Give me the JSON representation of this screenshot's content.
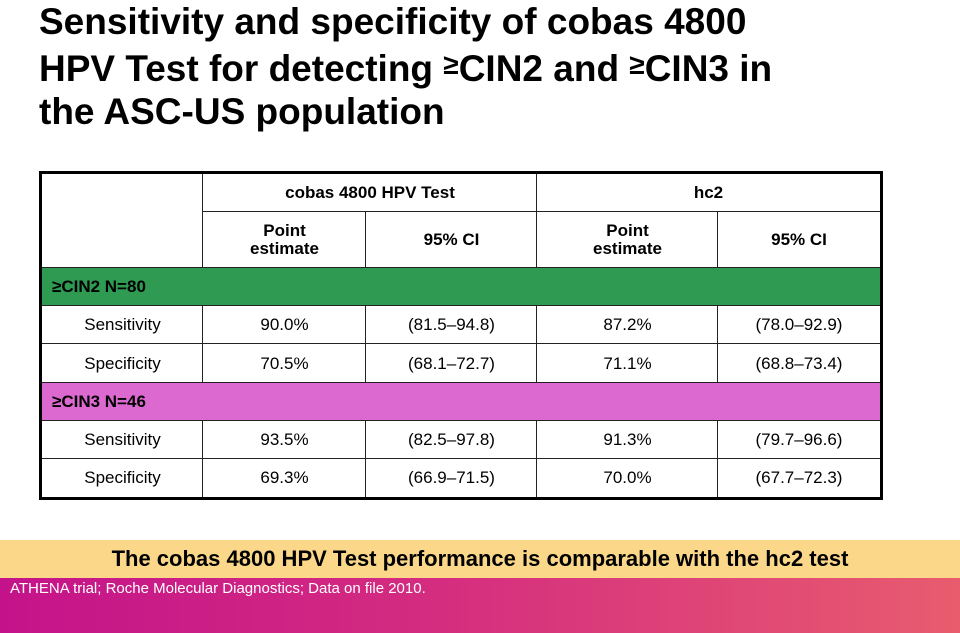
{
  "title": {
    "line1": "Sensitivity and specificity of cobas 4800",
    "line2_a": "HPV Test for detecting ",
    "ge": "≥",
    "line2_b": "CIN2 and ",
    "line2_c": "CIN3 in",
    "line3": "the ASC-US population"
  },
  "table": {
    "group_headers": [
      "cobas 4800 HPV Test",
      "hc2"
    ],
    "sub_headers": [
      "Point estimate",
      "95% CI",
      "Point estimate",
      "95% CI"
    ],
    "sections": [
      {
        "label": "≥CIN2  N=80",
        "color": "#2e9a52",
        "rows": [
          {
            "metric": "Sensitivity",
            "cobas_point": "90.0%",
            "cobas_ci": "(81.5–94.8)",
            "hc2_point": "87.2%",
            "hc2_ci": "(78.0–92.9)"
          },
          {
            "metric": "Specificity",
            "cobas_point": "70.5%",
            "cobas_ci": "(68.1–72.7)",
            "hc2_point": "71.1%",
            "hc2_ci": "(68.8–73.4)"
          }
        ]
      },
      {
        "label": "≥CIN3 N=46",
        "color": "#dc69cf",
        "rows": [
          {
            "metric": "Sensitivity",
            "cobas_point": "93.5%",
            "cobas_ci": "(82.5–97.8)",
            "hc2_point": "91.3%",
            "hc2_ci": "(79.7–96.6)"
          },
          {
            "metric": "Specificity",
            "cobas_point": "69.3%",
            "cobas_ci": "(66.9–71.5)",
            "hc2_point": "70.0%",
            "hc2_ci": "(67.7–72.3)"
          }
        ]
      }
    ]
  },
  "footer": {
    "conclusion": "The cobas 4800 HPV Test performance is comparable with the hc2 test",
    "citation": "ATHENA trial; Roche Molecular Diagnostics; Data on file 2010.",
    "conclusion_bg": "#fbd78a"
  }
}
